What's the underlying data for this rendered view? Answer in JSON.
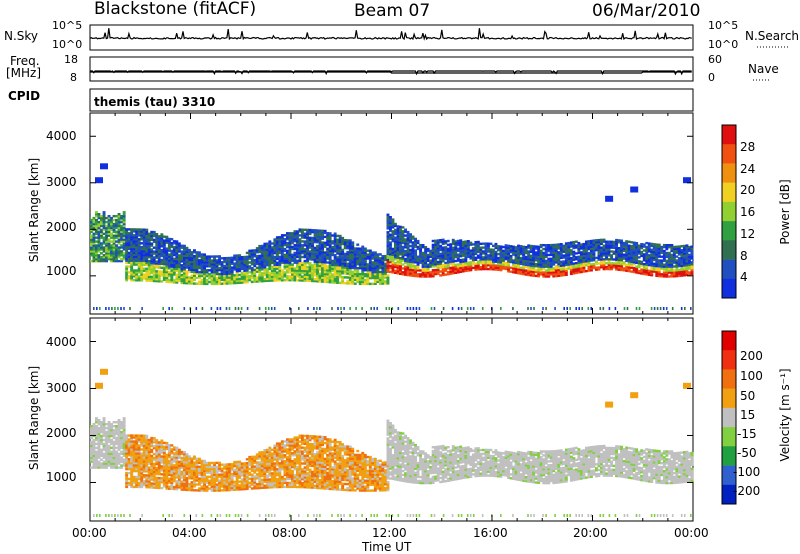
{
  "header": {
    "station": "Blackstone (fitACF)",
    "beam": "Beam 07",
    "date": "06/Mar/2010"
  },
  "strip_labels": {
    "nsky": "N.Sky",
    "nsearch": "N.Search",
    "freq_line1": "Freq.",
    "freq_line2": "[MHz]",
    "nave": "Nave",
    "cpid": "CPID",
    "cpid_value": "themis (tau) 3310",
    "nsky_ticks": [
      "10^5",
      "10^0"
    ],
    "nsearch_ticks": [
      "10^5",
      "10^0"
    ],
    "freq_ticks": [
      "18",
      "8"
    ],
    "nave_ticks": [
      "60",
      "0"
    ]
  },
  "colors": {
    "background": "#ffffff",
    "ground_scatter": "#c0c0c0",
    "power_scale": [
      "#1030e0",
      "#2050c0",
      "#307050",
      "#30a040",
      "#90d030",
      "#f0d020",
      "#f09010",
      "#f05010",
      "#e01010"
    ],
    "velocity_scale": [
      "#0020c0",
      "#3060d0",
      "#20a040",
      "#80d040",
      "#c0c0c0",
      "#f0a010",
      "#f07010",
      "#f03010",
      "#e00000"
    ]
  },
  "chart_data": [
    {
      "type": "heatmap",
      "name": "power",
      "ylabel": "Slant Range [km]",
      "yticks": [
        "4000",
        "3000",
        "2000",
        "1000"
      ],
      "ylim": [
        180,
        4500
      ],
      "xticks": [
        "00:00",
        "04:00",
        "08:00",
        "12:00",
        "16:00",
        "20:00",
        "00:00"
      ],
      "xlim": [
        0,
        24
      ],
      "colorbar_label": "Power [dB]",
      "colorbar_ticks": [
        "28",
        "24",
        "20",
        "16",
        "12",
        "8",
        "4"
      ],
      "colorbar_range": [
        0,
        32
      ]
    },
    {
      "type": "heatmap",
      "name": "velocity",
      "ylabel": "Slant Range [km]",
      "yticks": [
        "4000",
        "3000",
        "2000",
        "1000"
      ],
      "ylim": [
        180,
        4500
      ],
      "xticks": [
        "00:00",
        "04:00",
        "08:00",
        "12:00",
        "16:00",
        "20:00",
        "00:00"
      ],
      "xlim": [
        0,
        24
      ],
      "xlabel": "Time UT",
      "colorbar_label": "Velocity [m s⁻¹]",
      "colorbar_ticks": [
        "200",
        "100",
        "50",
        "15",
        "-15",
        "-50",
        "-100",
        "-200"
      ],
      "colorbar_range": [
        -250,
        250
      ]
    }
  ]
}
